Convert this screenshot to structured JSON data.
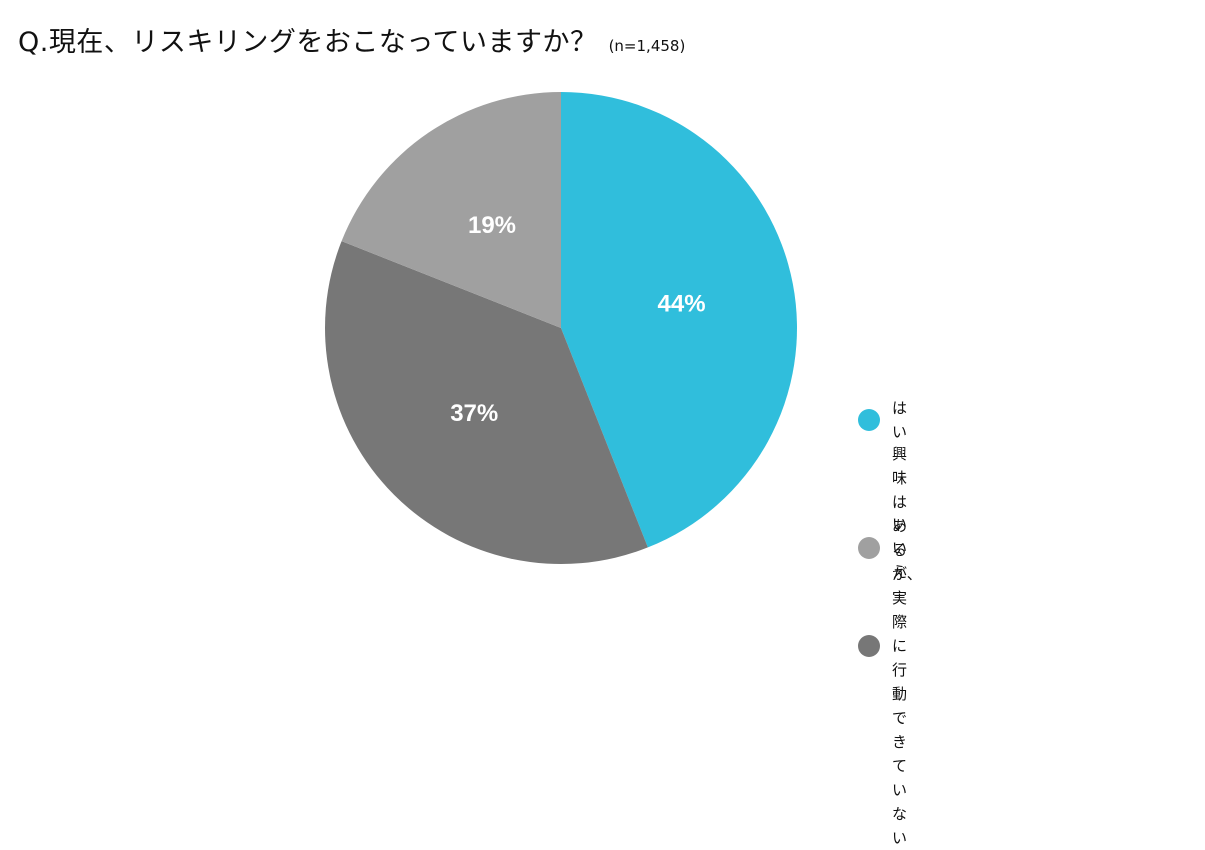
{
  "title": {
    "question": "Q.現在、リスキリングをおこなっていますか？",
    "sample": "(n=1,458)"
  },
  "chart_data": {
    "type": "pie",
    "start": "12 o'clock",
    "direction": "clockwise",
    "slices": [
      {
        "label": "はい",
        "value": 44,
        "value_label": "44%",
        "color": "#30BEDC"
      },
      {
        "label": "興味はあるが、\n実際に行動できていない",
        "value": 37,
        "value_label": "37%",
        "color": "#777777"
      },
      {
        "label": "いいえ",
        "value": 19,
        "value_label": "19%",
        "color": "#A0A0A0"
      }
    ],
    "legend_position": "bottom-right"
  }
}
